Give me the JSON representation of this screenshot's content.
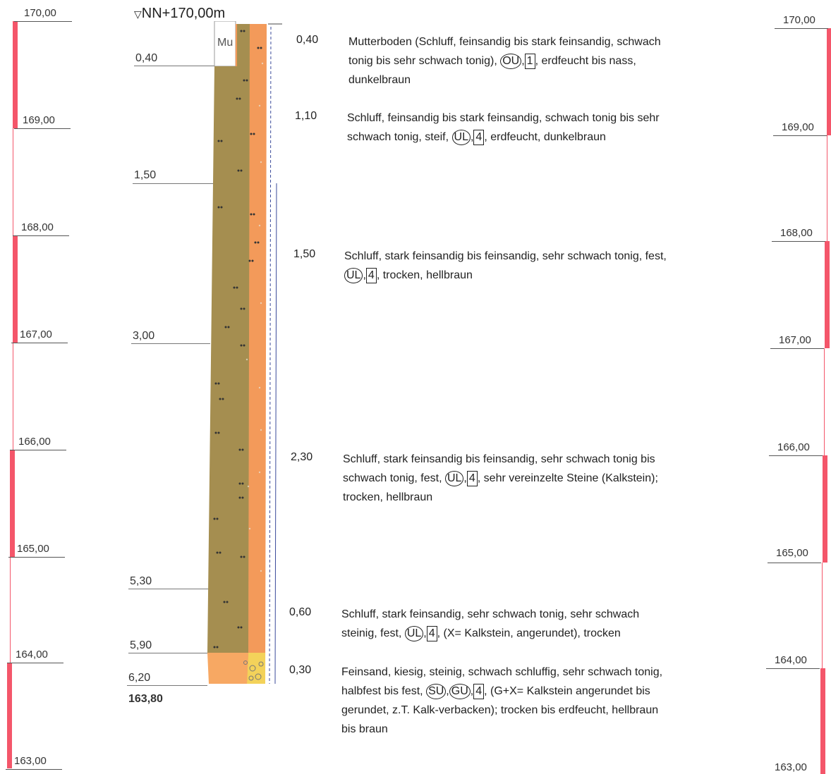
{
  "header": {
    "level_marker": "▽",
    "level_text": "NN+170,00m"
  },
  "left_scale": {
    "labels": [
      "170,00",
      "169,00",
      "168,00",
      "167,00",
      "166,00",
      "165,00",
      "164,00",
      "163,00"
    ],
    "color": "#f4566a"
  },
  "right_scale": {
    "labels": [
      "170,00",
      "169,00",
      "168,00",
      "167,00",
      "166,00",
      "165,00",
      "164,00",
      "163,00"
    ],
    "color": "#f4566a"
  },
  "depths": [
    "0,40",
    "1,50",
    "3,00",
    "5,30",
    "5,90",
    "6,20"
  ],
  "bottom_elevation": "163,80",
  "column": {
    "top_label": "Mu",
    "colors": {
      "silt": "#a58e50",
      "sand_fill": "#f39a5a",
      "fine_sand": "#f7a863",
      "gravel_yellow": "#f3e05a"
    }
  },
  "layers": [
    {
      "thickness": "0,40",
      "t1": "Mutterboden (Schluff, feinsandig bis stark feinsandig, schwach",
      "t2a": "tonig bis sehr schwach tonig), ",
      "c1": "OU",
      "s1": ",",
      "b1": "1",
      "t2b": ", erdfeucht bis nass,",
      "t3": "dunkelbraun"
    },
    {
      "thickness": "1,10",
      "t1": "Schluff, feinsandig bis stark feinsandig, schwach tonig bis sehr",
      "t2a": "schwach tonig, steif, ",
      "c1": "UL",
      "s1": ",",
      "b1": "4",
      "t2b": ", erdfeucht, dunkelbraun"
    },
    {
      "thickness": "1,50",
      "t1": "Schluff, stark feinsandig bis feinsandig, sehr schwach tonig, fest,",
      "t2a": "",
      "c1": "UL",
      "s1": ",",
      "b1": "4",
      "t2b": ", trocken, hellbraun"
    },
    {
      "thickness": "2,30",
      "t1": "Schluff, stark feinsandig bis feinsandig, sehr schwach tonig bis",
      "t2a": "schwach tonig, fest, ",
      "c1": "UL",
      "s1": ",",
      "b1": "4",
      "t2b": ", sehr vereinzelte Steine (Kalkstein);",
      "t3": "trocken, hellbraun"
    },
    {
      "thickness": "0,60",
      "t1": "Schluff, stark feinsandig, sehr schwach tonig, sehr schwach",
      "t2a": "steinig, fest, ",
      "c1": "UL",
      "s1": ",",
      "b1": "4",
      "t2b": ", (X= Kalkstein, angerundet), trocken"
    },
    {
      "thickness": "0,30",
      "t1": "Feinsand, kiesig, steinig, schwach schluffig, sehr schwach tonig,",
      "t2a": "halbfest bis fest, ",
      "c1": "SU",
      "s0": ",",
      "c2": "GU",
      "s1": ",",
      "b1": "4",
      "t2b": ", (G+X= Kalkstein angerundet bis",
      "t3": "gerundet, z.T. Kalk-verbacken); trocken bis erdfeucht, hellbraun",
      "t4": "bis braun"
    }
  ]
}
